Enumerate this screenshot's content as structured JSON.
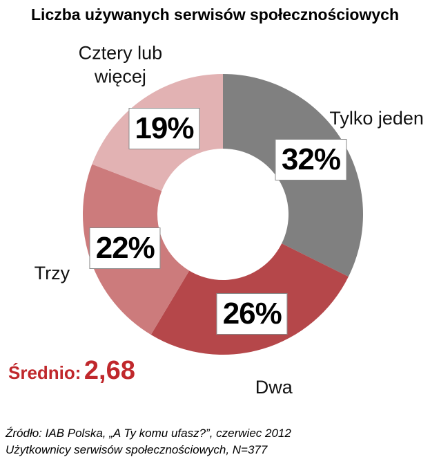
{
  "chart_data": {
    "type": "donut",
    "title": "Liczba używanych serwisów społecznościowych",
    "categories": [
      "Tylko jeden",
      "Dwa",
      "Trzy",
      "Cztery lub więcej"
    ],
    "values": [
      32,
      26,
      22,
      19
    ],
    "value_labels": [
      "32%",
      "26%",
      "22%",
      "19%"
    ],
    "colors": [
      "#808080",
      "#b5474a",
      "#cc7b7c",
      "#e2b2b3"
    ],
    "annotations": [
      "Średnio:",
      "2,68"
    ],
    "source": [
      "Źródło: IAB Polska, „A Ty komu ufasz?”, czerwiec 2012",
      "Użytkownicy serwisów społecznościowych, N=377"
    ]
  }
}
